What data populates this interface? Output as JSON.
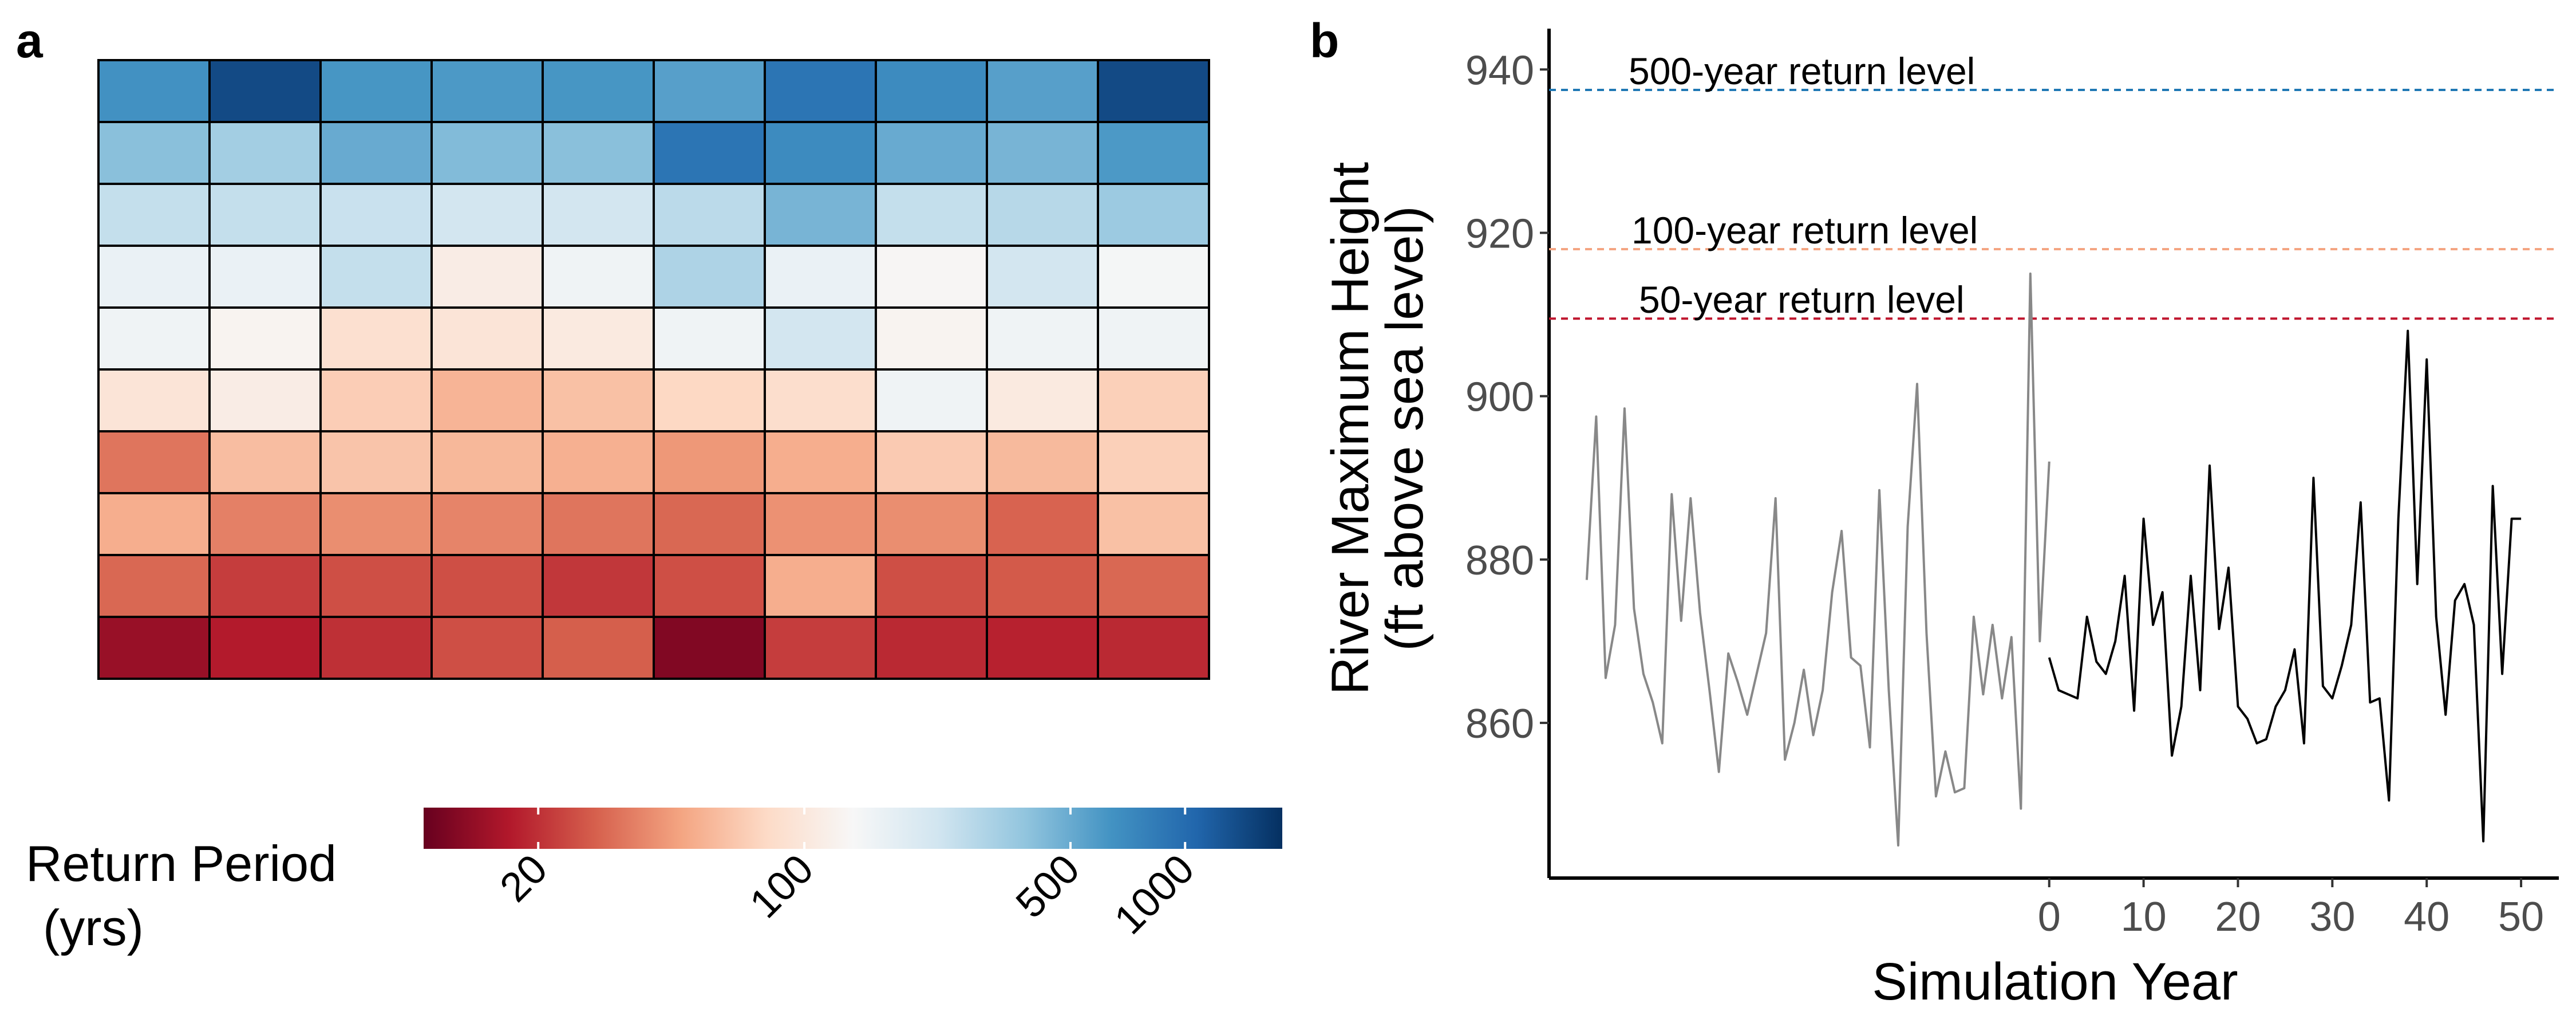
{
  "panel_labels": {
    "a": "a",
    "b": "b"
  },
  "colors": {
    "grid_border": "#000000",
    "text": "#000000",
    "tick_text": "#4d4d4d",
    "hist_line": "#888888",
    "sim_line": "#000000",
    "rl_500": "#1f78b4",
    "rl_100": "#f4a582",
    "rl_50": "#c0162e",
    "colorscale": [
      "#67001f",
      "#b2182b",
      "#d6604d",
      "#f4a582",
      "#fddbc7",
      "#f7f7f7",
      "#d1e5f0",
      "#92c5de",
      "#4393c3",
      "#2166ac",
      "#053061"
    ]
  },
  "chart_data": [
    {
      "type": "heatmap",
      "panel": "a",
      "rows": 10,
      "cols": 10,
      "value_unit": "return period (yrs)",
      "values": [
        [
          650,
          1400,
          620,
          600,
          620,
          560,
          900,
          700,
          560,
          1400
        ],
        [
          400,
          330,
          500,
          420,
          400,
          900,
          700,
          500,
          450,
          600
        ],
        [
          250,
          250,
          240,
          220,
          220,
          270,
          450,
          250,
          280,
          350
        ],
        [
          160,
          160,
          250,
          110,
          150,
          300,
          160,
          130,
          220,
          140
        ],
        [
          150,
          125,
          88,
          95,
          105,
          150,
          220,
          125,
          150,
          150
        ],
        [
          95,
          110,
          70,
          55,
          62,
          78,
          85,
          150,
          105,
          72
        ],
        [
          33,
          60,
          64,
          57,
          53,
          43,
          52,
          68,
          58,
          72
        ],
        [
          52,
          36,
          40,
          37,
          33,
          30,
          41,
          40,
          29,
          62
        ],
        [
          30,
          22,
          25,
          25,
          21,
          25,
          52,
          25,
          27,
          30
        ],
        [
          14,
          17,
          20,
          25,
          28,
          12,
          22,
          19,
          18,
          19
        ]
      ],
      "colorbar": {
        "title_line1": "Return Period",
        "title_line2": "(yrs)",
        "scale": "log",
        "range": [
          10,
          1800
        ],
        "ticks": [
          20,
          100,
          500,
          1000
        ],
        "tick_labels": [
          "20",
          "100",
          "500",
          "1000"
        ]
      }
    },
    {
      "type": "line",
      "panel": "b",
      "xlabel": "Simulation Year",
      "ylabel_line1": "River Maximum Height",
      "ylabel_line2": "(ft above sea level)",
      "x_ticks": [
        0,
        10,
        20,
        30,
        40,
        50
      ],
      "y_ticks": [
        860,
        880,
        900,
        920,
        940
      ],
      "xlim": [
        -53,
        54
      ],
      "ylim": [
        841,
        945
      ],
      "series": [
        {
          "role": "historical",
          "x": [
            -49,
            -48,
            -47,
            -46,
            -45,
            -44,
            -43,
            -42,
            -41,
            -40,
            -39,
            -38,
            -37,
            -36,
            -35,
            -34,
            -33,
            -32,
            -31,
            -30,
            -29,
            -28,
            -27,
            -26,
            -25,
            -24,
            -23,
            -22,
            -21,
            -20,
            -19,
            -18,
            -17,
            -16,
            -15,
            -14,
            -13,
            -12,
            -11,
            -10,
            -9,
            -8,
            -7,
            -6,
            -5,
            -4,
            -3,
            -2,
            -1,
            0
          ],
          "values": [
            877.5,
            897.5,
            865.5,
            872.0,
            898.5,
            874.0,
            866.0,
            862.5,
            857.5,
            888.0,
            872.5,
            887.5,
            873.5,
            864.0,
            854.0,
            868.5,
            865.0,
            861.0,
            866.0,
            871.0,
            887.5,
            855.5,
            860.0,
            866.5,
            858.5,
            864.0,
            876.0,
            883.5,
            868.0,
            867.0,
            857.0,
            888.5,
            864.0,
            845.0,
            884.0,
            901.5,
            871.0,
            851.0,
            856.5,
            851.5,
            852.0,
            873.0,
            863.5,
            872.0,
            863.0,
            870.5,
            849.5,
            915.0,
            870.0,
            892.0
          ]
        },
        {
          "role": "simulated",
          "x": [
            0,
            1,
            2,
            3,
            4,
            5,
            6,
            7,
            8,
            9,
            10,
            11,
            12,
            13,
            14,
            15,
            16,
            17,
            18,
            19,
            20,
            21,
            22,
            23,
            24,
            25,
            26,
            27,
            28,
            29,
            30,
            31,
            32,
            33,
            34,
            35,
            36,
            37,
            38,
            39,
            40,
            41,
            42,
            43,
            44,
            45,
            46,
            47,
            48,
            49,
            50
          ],
          "values": [
            868.0,
            864.0,
            863.5,
            863.0,
            873.0,
            867.5,
            866.0,
            870.0,
            878.0,
            861.5,
            885.0,
            872.0,
            876.0,
            856.0,
            862.0,
            878.0,
            864.0,
            891.5,
            871.5,
            879.0,
            862.0,
            860.5,
            857.5,
            858.0,
            862.0,
            864.0,
            869.0,
            857.5,
            890.0,
            864.5,
            863.0,
            867.0,
            872.0,
            887.0,
            862.5,
            863.0,
            850.5,
            885.0,
            908.0,
            877.0,
            904.5,
            873.0,
            861.0,
            875.0,
            877.0,
            872.0,
            845.5,
            889.0,
            866.0,
            885.0,
            885.0
          ]
        }
      ],
      "return_levels": [
        {
          "label": "500-year return level",
          "y": 937.5,
          "color_key": "rl_500"
        },
        {
          "label": "100-year return level",
          "y": 918.0,
          "color_key": "rl_100"
        },
        {
          "label": "50-year return level",
          "y": 909.5,
          "color_key": "rl_50"
        }
      ]
    }
  ]
}
